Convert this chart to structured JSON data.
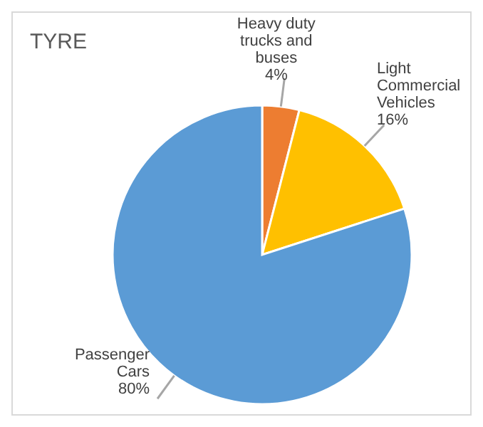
{
  "chart_data": {
    "type": "pie",
    "title": "TYRE",
    "categories": [
      "Heavy duty trucks and buses",
      "Light Commercial Vehicles",
      "Passenger Cars"
    ],
    "values": [
      4,
      16,
      80
    ],
    "colors": [
      "#ed7d31",
      "#ffc000",
      "#5b9bd5"
    ],
    "value_labels": [
      "4%",
      "16%",
      "80%"
    ]
  }
}
